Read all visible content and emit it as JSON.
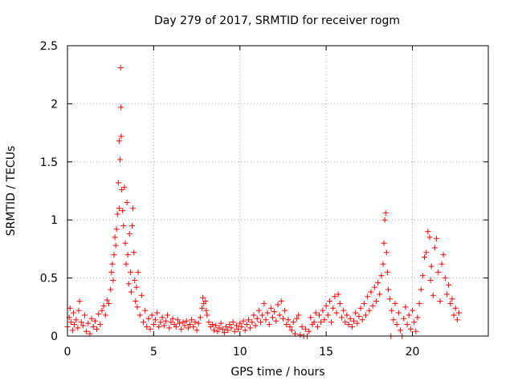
{
  "chart_data": {
    "type": "scatter",
    "title": "Day 279 of 2017, SRMTID for receiver rogm",
    "xlabel": "GPS time / hours",
    "ylabel": "SRMTID / TECUs",
    "xlim": [
      0,
      24.4
    ],
    "ylim": [
      0,
      2.5
    ],
    "xticks": [
      0,
      5,
      10,
      15,
      20
    ],
    "xtick_labels": [
      "0",
      "5",
      "10",
      "15",
      "20"
    ],
    "yticks": [
      0,
      0.5,
      1,
      1.5,
      2,
      2.5
    ],
    "ytick_labels": [
      "0",
      "0.5",
      "1",
      "1.5",
      "2",
      "2.5"
    ],
    "grid": true,
    "marker": "+",
    "series": [
      {
        "name": "SRMTID",
        "color": "#ff0000",
        "points": [
          [
            0.0,
            0.08
          ],
          [
            0.1,
            0.16
          ],
          [
            0.15,
            0.24
          ],
          [
            0.2,
            0.12
          ],
          [
            0.3,
            0.05
          ],
          [
            0.35,
            0.2
          ],
          [
            0.4,
            0.1
          ],
          [
            0.5,
            0.14
          ],
          [
            0.6,
            0.07
          ],
          [
            0.65,
            0.22
          ],
          [
            0.7,
            0.3
          ],
          [
            0.8,
            0.12
          ],
          [
            0.9,
            0.09
          ],
          [
            1.0,
            0.18
          ],
          [
            1.1,
            0.04
          ],
          [
            1.2,
            0.11
          ],
          [
            1.3,
            0.02
          ],
          [
            1.4,
            0.15
          ],
          [
            1.5,
            0.08
          ],
          [
            1.6,
            0.13
          ],
          [
            1.7,
            0.06
          ],
          [
            1.8,
            0.19
          ],
          [
            1.9,
            0.1
          ],
          [
            2.0,
            0.22
          ],
          [
            2.1,
            0.26
          ],
          [
            2.2,
            0.18
          ],
          [
            2.3,
            0.31
          ],
          [
            2.4,
            0.28
          ],
          [
            2.5,
            0.4
          ],
          [
            2.55,
            0.55
          ],
          [
            2.6,
            0.62
          ],
          [
            2.65,
            0.48
          ],
          [
            2.7,
            0.7
          ],
          [
            2.75,
            0.85
          ],
          [
            2.8,
            0.78
          ],
          [
            2.85,
            0.92
          ],
          [
            2.9,
            1.05
          ],
          [
            2.95,
            1.32
          ],
          [
            3.0,
            1.1
          ],
          [
            3.0,
            1.68
          ],
          [
            3.05,
            1.52
          ],
          [
            3.08,
            2.31
          ],
          [
            3.1,
            1.97
          ],
          [
            3.12,
            1.72
          ],
          [
            3.15,
            1.26
          ],
          [
            3.2,
            1.08
          ],
          [
            3.25,
            0.95
          ],
          [
            3.3,
            1.28
          ],
          [
            3.35,
            0.8
          ],
          [
            3.4,
            0.62
          ],
          [
            3.45,
            1.15
          ],
          [
            3.5,
            0.7
          ],
          [
            3.55,
            0.45
          ],
          [
            3.6,
            0.88
          ],
          [
            3.65,
            0.55
          ],
          [
            3.7,
            0.38
          ],
          [
            3.75,
            0.95
          ],
          [
            3.8,
            1.1
          ],
          [
            3.85,
            0.72
          ],
          [
            3.9,
            0.48
          ],
          [
            3.95,
            0.3
          ],
          [
            4.0,
            0.42
          ],
          [
            4.05,
            0.25
          ],
          [
            4.1,
            0.55
          ],
          [
            4.2,
            0.18
          ],
          [
            4.3,
            0.35
          ],
          [
            4.4,
            0.12
          ],
          [
            4.5,
            0.22
          ],
          [
            4.6,
            0.08
          ],
          [
            4.7,
            0.15
          ],
          [
            4.8,
            0.06
          ],
          [
            4.9,
            0.18
          ],
          [
            5.0,
            0.1
          ],
          [
            5.1,
            0.14
          ],
          [
            5.2,
            0.2
          ],
          [
            5.3,
            0.08
          ],
          [
            5.4,
            0.12
          ],
          [
            5.5,
            0.16
          ],
          [
            5.6,
            0.09
          ],
          [
            5.7,
            0.13
          ],
          [
            5.8,
            0.18
          ],
          [
            5.9,
            0.07
          ],
          [
            6.0,
            0.12
          ],
          [
            6.1,
            0.15
          ],
          [
            6.2,
            0.1
          ],
          [
            6.3,
            0.08
          ],
          [
            6.4,
            0.14
          ],
          [
            6.5,
            0.11
          ],
          [
            6.6,
            0.06
          ],
          [
            6.7,
            0.12
          ],
          [
            6.8,
            0.09
          ],
          [
            6.9,
            0.13
          ],
          [
            7.0,
            0.07
          ],
          [
            7.1,
            0.1
          ],
          [
            7.2,
            0.14
          ],
          [
            7.3,
            0.08
          ],
          [
            7.4,
            0.12
          ],
          [
            7.5,
            0.05
          ],
          [
            7.6,
            0.11
          ],
          [
            7.7,
            0.16
          ],
          [
            7.8,
            0.24
          ],
          [
            7.85,
            0.33
          ],
          [
            7.9,
            0.28
          ],
          [
            8.0,
            0.3
          ],
          [
            8.05,
            0.22
          ],
          [
            8.1,
            0.18
          ],
          [
            8.2,
            0.12
          ],
          [
            8.3,
            0.08
          ],
          [
            8.4,
            0.1
          ],
          [
            8.5,
            0.05
          ],
          [
            8.6,
            0.09
          ],
          [
            8.7,
            0.04
          ],
          [
            8.8,
            0.07
          ],
          [
            8.9,
            0.11
          ],
          [
            9.0,
            0.06
          ],
          [
            9.1,
            0.03
          ],
          [
            9.2,
            0.08
          ],
          [
            9.3,
            0.05
          ],
          [
            9.4,
            0.1
          ],
          [
            9.5,
            0.07
          ],
          [
            9.6,
            0.12
          ],
          [
            9.7,
            0.04
          ],
          [
            9.8,
            0.09
          ],
          [
            9.9,
            0.06
          ],
          [
            10.0,
            0.11
          ],
          [
            10.1,
            0.08
          ],
          [
            10.2,
            0.13
          ],
          [
            10.3,
            0.05
          ],
          [
            10.4,
            0.1
          ],
          [
            10.5,
            0.14
          ],
          [
            10.6,
            0.07
          ],
          [
            10.7,
            0.12
          ],
          [
            10.8,
            0.18
          ],
          [
            10.9,
            0.09
          ],
          [
            11.0,
            0.15
          ],
          [
            11.1,
            0.22
          ],
          [
            11.2,
            0.12
          ],
          [
            11.3,
            0.18
          ],
          [
            11.4,
            0.28
          ],
          [
            11.5,
            0.14
          ],
          [
            11.6,
            0.2
          ],
          [
            11.7,
            0.1
          ],
          [
            11.8,
            0.24
          ],
          [
            11.9,
            0.16
          ],
          [
            12.0,
            0.21
          ],
          [
            12.1,
            0.13
          ],
          [
            12.2,
            0.27
          ],
          [
            12.3,
            0.18
          ],
          [
            12.4,
            0.3
          ],
          [
            12.5,
            0.15
          ],
          [
            12.6,
            0.22
          ],
          [
            12.7,
            0.1
          ],
          [
            12.8,
            0.14
          ],
          [
            12.9,
            0.08
          ],
          [
            13.0,
            0.05
          ],
          [
            13.1,
            0.12
          ],
          [
            13.2,
            0.02
          ],
          [
            13.3,
            0.15
          ],
          [
            13.4,
            0.18
          ],
          [
            13.5,
            0.01
          ],
          [
            13.6,
            0.08
          ],
          [
            13.7,
            0.0
          ],
          [
            13.8,
            0.06
          ],
          [
            13.9,
            0.0
          ],
          [
            14.0,
            0.04
          ],
          [
            14.1,
            0.16
          ],
          [
            14.2,
            0.1
          ],
          [
            14.3,
            0.12
          ],
          [
            14.4,
            0.2
          ],
          [
            14.5,
            0.08
          ],
          [
            14.6,
            0.18
          ],
          [
            14.7,
            0.12
          ],
          [
            14.8,
            0.22
          ],
          [
            14.9,
            0.14
          ],
          [
            15.0,
            0.26
          ],
          [
            15.1,
            0.18
          ],
          [
            15.2,
            0.3
          ],
          [
            15.3,
            0.12
          ],
          [
            15.4,
            0.24
          ],
          [
            15.5,
            0.34
          ],
          [
            15.6,
            0.2
          ],
          [
            15.7,
            0.36
          ],
          [
            15.8,
            0.28
          ],
          [
            15.9,
            0.16
          ],
          [
            16.0,
            0.22
          ],
          [
            16.1,
            0.12
          ],
          [
            16.2,
            0.18
          ],
          [
            16.3,
            0.1
          ],
          [
            16.4,
            0.15
          ],
          [
            16.5,
            0.08
          ],
          [
            16.6,
            0.13
          ],
          [
            16.7,
            0.2
          ],
          [
            16.8,
            0.11
          ],
          [
            16.9,
            0.17
          ],
          [
            17.0,
            0.24
          ],
          [
            17.1,
            0.14
          ],
          [
            17.2,
            0.28
          ],
          [
            17.3,
            0.18
          ],
          [
            17.4,
            0.34
          ],
          [
            17.5,
            0.22
          ],
          [
            17.6,
            0.38
          ],
          [
            17.7,
            0.26
          ],
          [
            17.8,
            0.42
          ],
          [
            17.9,
            0.3
          ],
          [
            18.0,
            0.46
          ],
          [
            18.1,
            0.36
          ],
          [
            18.2,
            0.52
          ],
          [
            18.3,
            0.62
          ],
          [
            18.35,
            0.8
          ],
          [
            18.4,
            1.0
          ],
          [
            18.45,
            1.06
          ],
          [
            18.5,
            0.72
          ],
          [
            18.55,
            0.55
          ],
          [
            18.6,
            0.4
          ],
          [
            18.7,
            0.32
          ],
          [
            18.75,
            0.0
          ],
          [
            18.8,
            0.22
          ],
          [
            18.9,
            0.14
          ],
          [
            19.0,
            0.28
          ],
          [
            19.1,
            0.1
          ],
          [
            19.2,
            0.2
          ],
          [
            19.3,
            0.05
          ],
          [
            19.4,
            0.0
          ],
          [
            19.5,
            0.15
          ],
          [
            19.6,
            0.25
          ],
          [
            19.7,
            0.1
          ],
          [
            19.8,
            0.18
          ],
          [
            19.9,
            0.06
          ],
          [
            20.0,
            0.22
          ],
          [
            20.1,
            0.12
          ],
          [
            20.2,
            0.04
          ],
          [
            20.3,
            0.16
          ],
          [
            20.4,
            0.28
          ],
          [
            20.5,
            0.4
          ],
          [
            20.6,
            0.52
          ],
          [
            20.7,
            0.68
          ],
          [
            20.8,
            0.72
          ],
          [
            20.9,
            0.9
          ],
          [
            21.0,
            0.85
          ],
          [
            21.05,
            0.48
          ],
          [
            21.1,
            0.6
          ],
          [
            21.2,
            0.35
          ],
          [
            21.3,
            0.76
          ],
          [
            21.4,
            0.84
          ],
          [
            21.5,
            0.55
          ],
          [
            21.6,
            0.3
          ],
          [
            21.7,
            0.62
          ],
          [
            21.8,
            0.7
          ],
          [
            21.9,
            0.5
          ],
          [
            22.0,
            0.36
          ],
          [
            22.1,
            0.44
          ],
          [
            22.2,
            0.28
          ],
          [
            22.3,
            0.32
          ],
          [
            22.4,
            0.18
          ],
          [
            22.5,
            0.24
          ],
          [
            22.6,
            0.14
          ],
          [
            22.7,
            0.2
          ]
        ]
      }
    ]
  }
}
